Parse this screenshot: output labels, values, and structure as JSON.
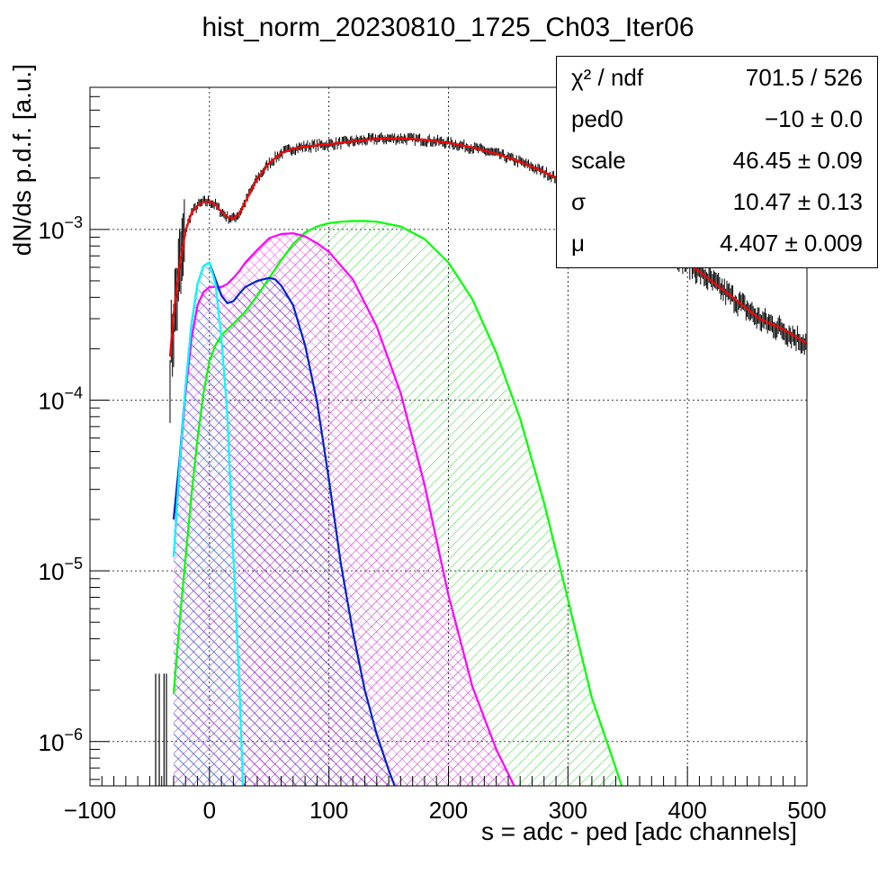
{
  "chart_data": {
    "type": "line",
    "title": "hist_norm_20230810_1725_Ch03_Iter06",
    "xlabel": "s = adc - ped [adc channels]",
    "ylabel": "dN/ds p.d.f. [a.u.]",
    "xlim": [
      -100,
      500
    ],
    "ylim": [
      5.5e-07,
      0.0068
    ],
    "y_scale": "log",
    "grid": true,
    "x_ticks": [
      -100,
      0,
      100,
      200,
      300,
      400,
      500
    ],
    "x_tick_labels": [
      "−100",
      "0",
      "100",
      "200",
      "300",
      "400",
      "500"
    ],
    "y_ticks": [
      1e-06,
      1e-05,
      0.0001,
      0.001
    ],
    "y_tick_labels": [
      {
        "base": "10",
        "exp": "−6"
      },
      {
        "base": "10",
        "exp": "−5"
      },
      {
        "base": "10",
        "exp": "−4"
      },
      {
        "base": "10",
        "exp": "−3"
      }
    ],
    "series": [
      {
        "color": "#ff0000",
        "kind": "line",
        "x": [
          -33,
          -30,
          -25,
          -20,
          -15,
          -10,
          -5,
          0,
          5,
          10,
          15,
          20,
          25,
          30,
          35,
          40,
          50,
          60,
          70,
          80,
          100,
          120,
          140,
          160,
          180,
          200,
          220,
          240,
          260,
          280,
          300,
          320,
          340,
          360,
          380,
          400,
          420,
          440,
          460,
          480,
          500
        ],
        "y": [
          0.00018,
          0.00032,
          0.00062,
          0.00098,
          0.00125,
          0.00138,
          0.00145,
          0.00146,
          0.00139,
          0.00127,
          0.00118,
          0.00116,
          0.00124,
          0.00145,
          0.0017,
          0.00198,
          0.00245,
          0.0028,
          0.00298,
          0.00306,
          0.00316,
          0.00328,
          0.0034,
          0.00342,
          0.00335,
          0.00322,
          0.00302,
          0.00278,
          0.00249,
          0.00217,
          0.00185,
          0.00155,
          0.00126,
          0.00102,
          0.00081,
          0.00064,
          0.0005,
          0.00039,
          0.0003,
          0.00026,
          0.000215
        ]
      },
      {
        "color": "#00ffff",
        "kind": "fill",
        "hatch": "backslash",
        "x": [
          -30,
          -25,
          -20,
          -15,
          -10,
          -5,
          0,
          5,
          10,
          15,
          20,
          25,
          28
        ],
        "y": [
          1.2e-05,
          4.2e-05,
          0.00012,
          0.00028,
          0.00048,
          0.00061,
          0.00064,
          0.00048,
          0.00023,
          8e-05,
          1.2e-05,
          2.2e-06,
          5.5e-07
        ]
      },
      {
        "color": "#0022cc",
        "kind": "fill",
        "hatch": "backslash",
        "x": [
          -30,
          -25,
          -20,
          -15,
          -10,
          -5,
          0,
          5,
          10,
          15,
          20,
          25,
          30,
          40,
          50,
          55,
          60,
          70,
          80,
          90,
          100,
          110,
          120,
          130,
          140,
          150,
          155
        ],
        "y": [
          2e-05,
          4.5e-05,
          0.00012,
          0.00028,
          0.00048,
          0.00061,
          0.00064,
          0.00051,
          0.00041,
          0.00037,
          0.00038,
          0.00042,
          0.00046,
          0.0005,
          0.00052,
          0.00051,
          0.00047,
          0.00036,
          0.00021,
          9.8e-05,
          3.4e-05,
          1.1e-05,
          4.4e-06,
          2e-06,
          1.1e-06,
          6.8e-07,
          5.5e-07
        ]
      },
      {
        "color": "#ff00ff",
        "kind": "fill",
        "hatch": "cross",
        "x": [
          -30,
          -25,
          -20,
          -15,
          -10,
          -5,
          0,
          5,
          10,
          15,
          20,
          25,
          30,
          40,
          50,
          60,
          70,
          80,
          90,
          100,
          120,
          140,
          160,
          180,
          200,
          220,
          240,
          255
        ],
        "y": [
          1.2e-05,
          4e-05,
          0.00011,
          0.00023,
          0.00036,
          0.00043,
          0.00046,
          0.00046,
          0.00046,
          0.00048,
          0.00052,
          0.00057,
          0.00064,
          0.00076,
          0.00089,
          0.00094,
          0.00095,
          0.00091,
          0.00083,
          0.00074,
          0.00051,
          0.00027,
          0.00011,
          3.2e-05,
          7.2e-06,
          2.1e-06,
          9e-07,
          5.5e-07
        ]
      },
      {
        "color": "#00ff00",
        "kind": "fill",
        "hatch": "slash",
        "x": [
          -30,
          -25,
          -20,
          -15,
          -10,
          -5,
          0,
          5,
          10,
          15,
          20,
          30,
          40,
          50,
          60,
          70,
          80,
          90,
          100,
          110,
          120,
          130,
          140,
          160,
          180,
          200,
          220,
          240,
          260,
          280,
          300,
          320,
          340,
          345
        ],
        "y": [
          1.9e-06,
          5e-06,
          1.2e-05,
          2.8e-05,
          6e-05,
          0.00011,
          0.00017,
          0.00021,
          0.00024,
          0.00026,
          0.00028,
          0.00033,
          0.00041,
          0.00052,
          0.00066,
          0.00082,
          0.00096,
          0.00104,
          0.00109,
          0.00111,
          0.00112,
          0.00112,
          0.00111,
          0.00104,
          0.00088,
          0.00064,
          0.00039,
          0.00019,
          7.8e-05,
          2.5e-05,
          6.8e-06,
          1.8e-06,
          7e-07,
          5.5e-07
        ]
      }
    ],
    "stats_box": [
      {
        "key": "χ² / ndf",
        "value": "701.5 / 526"
      },
      {
        "key": "ped0",
        "value": "−10 ± 0.0"
      },
      {
        "key": "scale",
        "value": "46.45 ± 0.09"
      },
      {
        "key": "σ",
        "value": "10.47 ± 0.13"
      },
      {
        "key": "μ",
        "value": "4.407 ± 0.009"
      }
    ]
  }
}
